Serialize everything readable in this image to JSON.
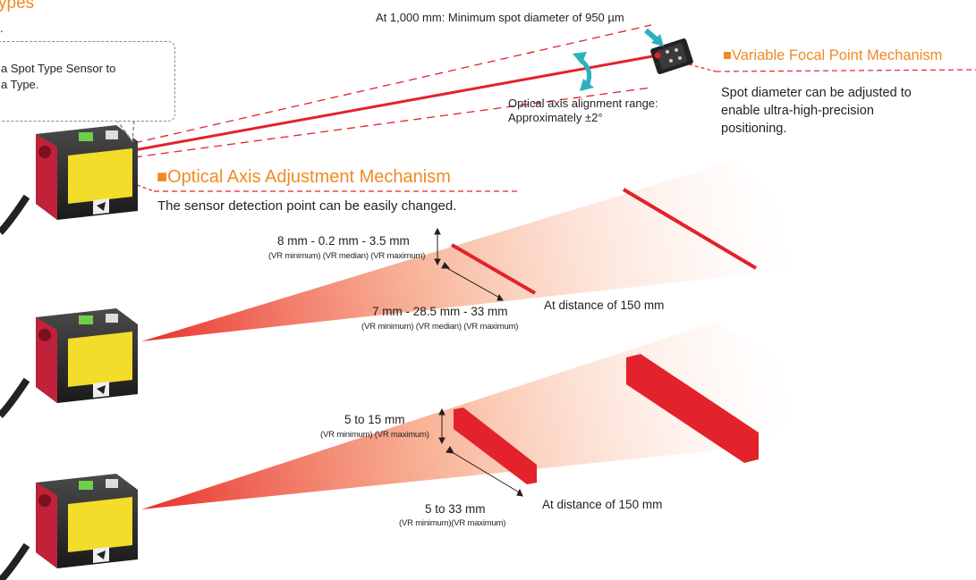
{
  "header": {
    "title_fragment": "ypes",
    "sub_fragment": "."
  },
  "callout": {
    "line1": "a Spot Type Sensor to",
    "line2": "a Type."
  },
  "top_note": "At 1,000 mm: Minimum spot diameter of 950 µm",
  "optical_axis_range": {
    "line1": "Optical axis alignment range:",
    "line2": "Approximately ±2°"
  },
  "variable_focal": {
    "title": "Variable Focal Point Mechanism",
    "desc_line1": "Spot diameter can be adjusted to",
    "desc_line2": "enable ultra-high-precision",
    "desc_line3": "positioning."
  },
  "optical_axis_adjust": {
    "title": "Optical Axis Adjustment Mechanism",
    "desc": "The sensor detection point can be easily changed."
  },
  "beam2": {
    "height_dims": "8 mm - 0.2 mm - 3.5 mm",
    "height_vr": "(VR minimum)  (VR median)  (VR maximum)",
    "width_dims": "7 mm - 28.5 mm - 33 mm",
    "width_vr": "(VR minimum)   (VR median)      (VR maximum)",
    "distance": "At distance of 150 mm"
  },
  "beam3": {
    "height_dims": "5 to 15 mm",
    "height_vr": "(VR minimum) (VR maximum)",
    "width_dims": "5 to 33 mm",
    "width_vr": "(VR minimum)(VR maximum)",
    "distance": "At distance of 150 mm"
  },
  "colors": {
    "accent": "#f08a24",
    "laser": "#e3222b",
    "sensor_body": "#2a2a2a",
    "label_yellow": "#f3dc2a"
  }
}
